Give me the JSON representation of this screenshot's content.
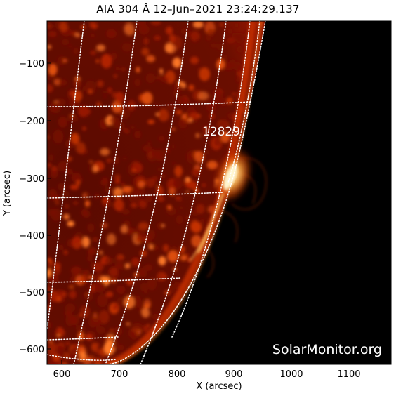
{
  "title": "AIA 304 Å 12–Jun–2021 23:24:29.137",
  "region_label": "12829",
  "watermark": "SolarMonitor.org",
  "x_axis": {
    "label": "X (arcsec)",
    "ticks": [
      "600",
      "700",
      "800",
      "900",
      "1000",
      "1100"
    ]
  },
  "y_axis": {
    "label": "Y (arcsec)",
    "ticks": [
      "−100",
      "−200",
      "−300",
      "−400",
      "−500",
      "−600"
    ]
  },
  "colors": {
    "background": "#000000",
    "disk_dark": "#4a0800",
    "disk_mid": "#a81e00",
    "bright": "#ff8a20",
    "core": "#fff4c0",
    "grid": "#ffffff"
  }
}
